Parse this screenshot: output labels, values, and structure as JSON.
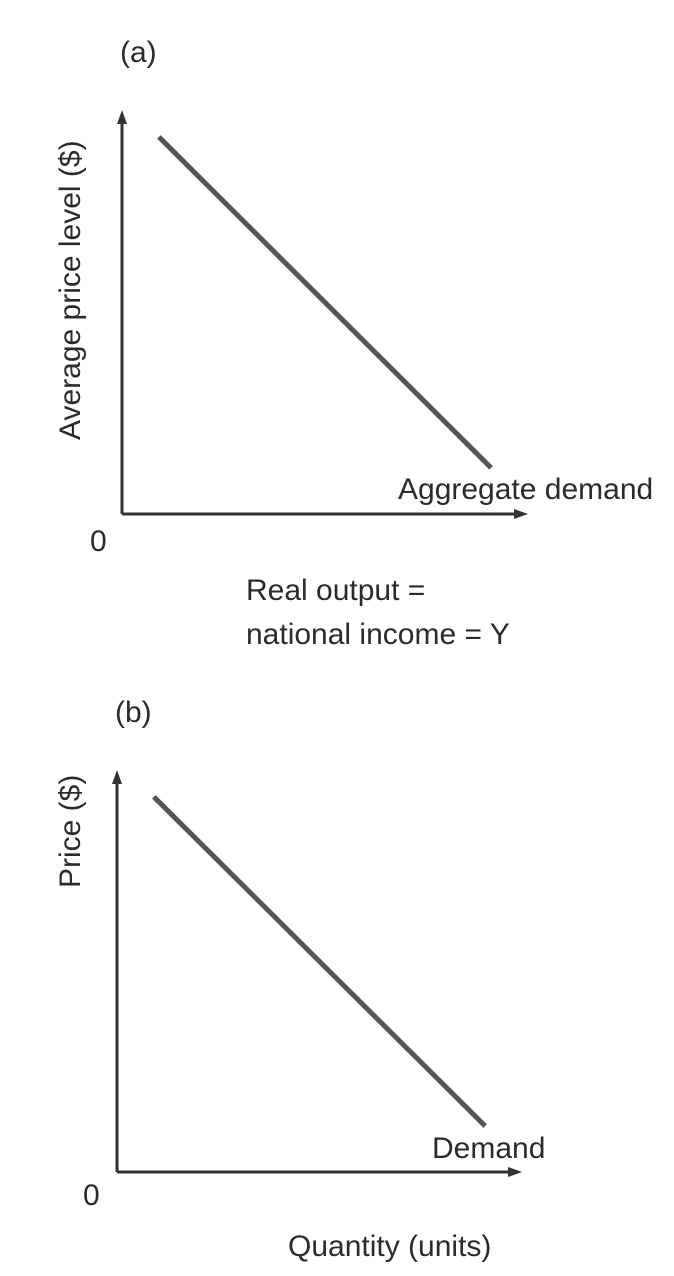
{
  "chart_data": [
    {
      "type": "line",
      "panel_label": "(a)",
      "origin_label": "0",
      "ylabel": "Average price level ($)",
      "xlabel_lines": [
        "Real output =",
        "national income = Y"
      ],
      "series": [
        {
          "name": "Aggregate demand",
          "x": [
            0.1,
            1.0
          ],
          "y": [
            0.98,
            0.12
          ]
        }
      ],
      "xlim": [
        0,
        1.1
      ],
      "ylim": [
        0,
        1.05
      ],
      "grid": false,
      "color": "#555555"
    },
    {
      "type": "line",
      "panel_label": "(b)",
      "origin_label": "0",
      "ylabel": "Price ($)",
      "xlabel_lines": [
        "Quantity (units)"
      ],
      "series": [
        {
          "name": "Demand",
          "x": [
            0.1,
            1.0
          ],
          "y": [
            0.98,
            0.12
          ]
        }
      ],
      "xlim": [
        0,
        1.1
      ],
      "ylim": [
        0,
        1.05
      ],
      "grid": false,
      "color": "#555555"
    }
  ]
}
